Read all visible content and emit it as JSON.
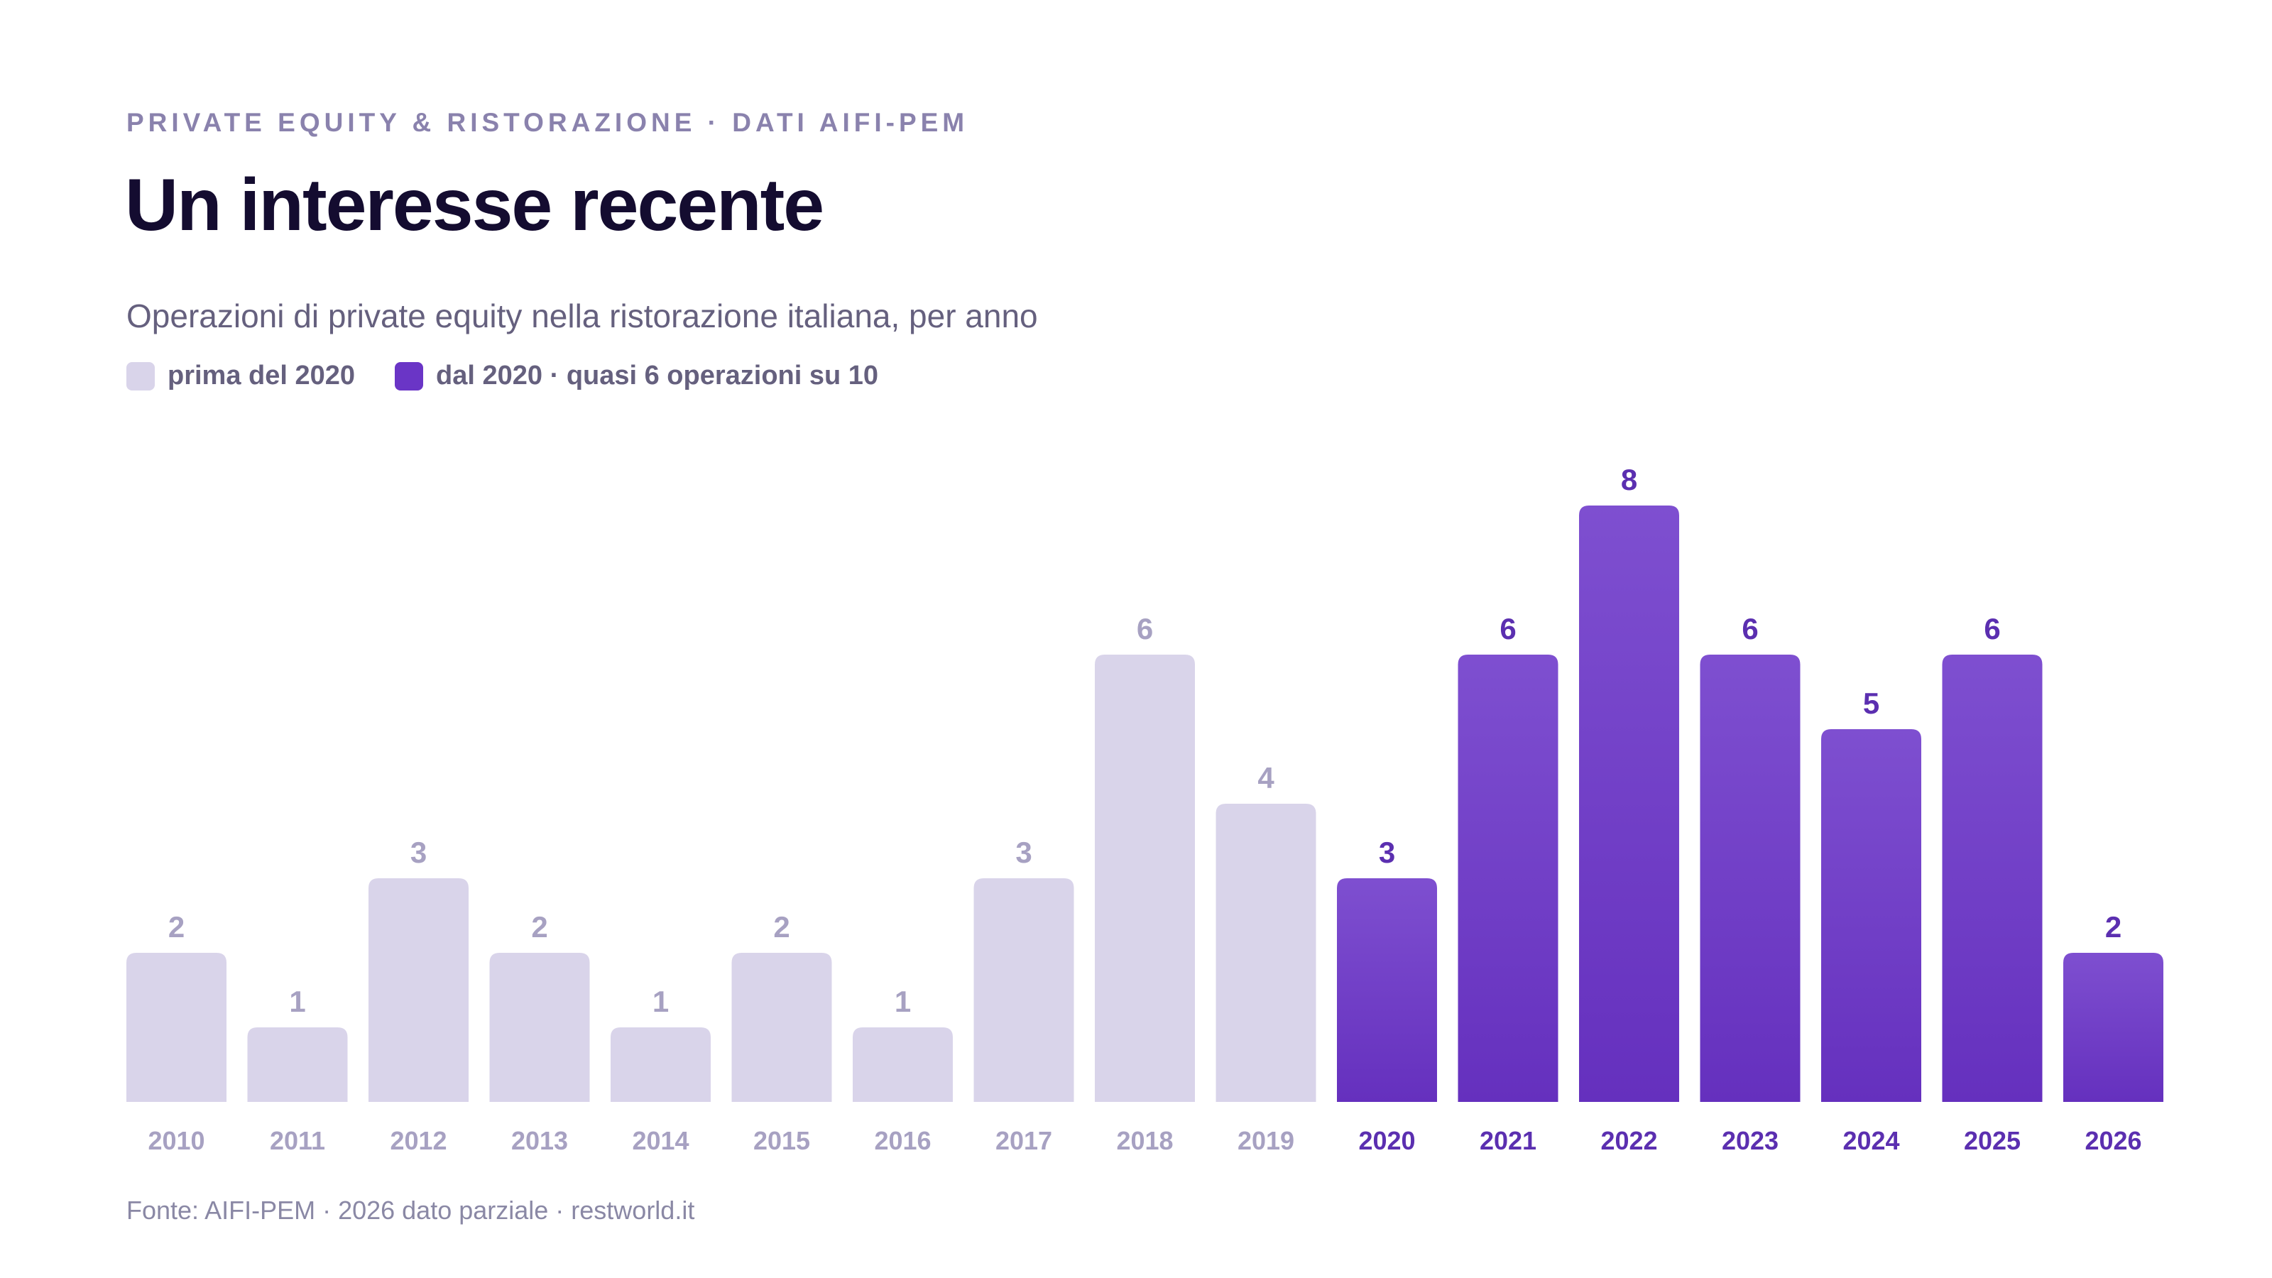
{
  "header": {
    "kicker": "PRIVATE EQUITY & RISTORAZIONE · DATI AIFI-PEM",
    "title": "Un interesse recente",
    "subtitle": "Operazioni di private equity nella ristorazione italiana, per anno"
  },
  "legend": {
    "items": [
      {
        "label": "prima del 2020",
        "color": "#d9d4ea"
      },
      {
        "label": "dal 2020 · quasi 6 operazioni su 10",
        "color": "#6a35c6"
      }
    ]
  },
  "colors": {
    "pre_bar": "#d9d4ea",
    "pre_label": "#a7a1c2",
    "post_bar_top": "#7e4fd0",
    "post_bar_bottom": "#6530be",
    "post_label": "#5b2fb0"
  },
  "chart_data": {
    "type": "bar",
    "categories": [
      "2010",
      "2011",
      "2012",
      "2013",
      "2014",
      "2015",
      "2016",
      "2017",
      "2018",
      "2019",
      "2020",
      "2021",
      "2022",
      "2023",
      "2024",
      "2025",
      "2026"
    ],
    "series": [
      {
        "values": [
          2,
          1,
          3,
          2,
          1,
          2,
          1,
          3,
          6,
          4,
          3,
          6,
          8,
          6,
          5,
          6,
          2
        ]
      }
    ],
    "highlight_from": "2020",
    "title": "Un interesse recente",
    "subtitle": "Operazioni di private equity nella ristorazione italiana, per anno",
    "ylim": [
      0,
      8
    ],
    "grid": false,
    "legend_position": "top-left",
    "data_labels": true
  },
  "footer": {
    "source": "Fonte: AIFI-PEM · 2026 dato parziale · restworld.it"
  }
}
